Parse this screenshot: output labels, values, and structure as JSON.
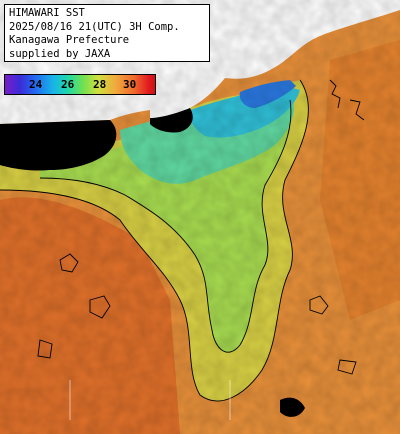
{
  "header": {
    "line1": "HIMAWARI SST",
    "line2": "2025/08/16 21(UTC) 3H Comp.",
    "line3": "Kanagawa Prefecture",
    "line4": "supplied by JAXA"
  },
  "scale": {
    "ticks": [
      "24",
      "26",
      "28",
      "30"
    ]
  },
  "colors": {
    "land": "#ffffff",
    "cloud": "#000000",
    "sst_24": "#2a50e0",
    "sst_26": "#30c8c8",
    "sst_27": "#a0e050",
    "sst_28": "#e8b040",
    "sst_29": "#e88a30",
    "sst_30": "#e06020"
  }
}
